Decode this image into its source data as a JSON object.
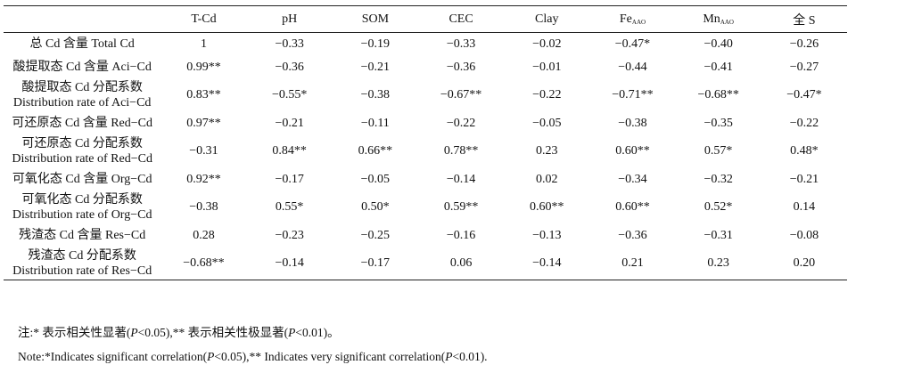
{
  "table": {
    "columns": [
      {
        "main": "",
        "sub": ""
      },
      {
        "main": "T-Cd",
        "sub": ""
      },
      {
        "main": "pH",
        "sub": ""
      },
      {
        "main": "SOM",
        "sub": ""
      },
      {
        "main": "CEC",
        "sub": ""
      },
      {
        "main": "Clay",
        "sub": ""
      },
      {
        "main": "Fe",
        "sub": "AAO"
      },
      {
        "main": "Mn",
        "sub": "AAO"
      },
      {
        "main": "全 S",
        "sub": ""
      }
    ],
    "rows": [
      {
        "label1": "总 Cd 含量 Total Cd",
        "label2": "",
        "values": [
          "1",
          "−0.33",
          "−0.19",
          "−0.33",
          "−0.02",
          "−0.47*",
          "−0.40",
          "−0.26"
        ]
      },
      {
        "label1": "酸提取态 Cd 含量 Aci−Cd",
        "label2": "",
        "values": [
          "0.99**",
          "−0.36",
          "−0.21",
          "−0.36",
          "−0.01",
          "−0.44",
          "−0.41",
          "−0.27"
        ]
      },
      {
        "label1": "酸提取态 Cd 分配系数",
        "label2": "Distribution rate of Aci−Cd",
        "values": [
          "0.83**",
          "−0.55*",
          "−0.38",
          "−0.67**",
          "−0.22",
          "−0.71**",
          "−0.68**",
          "−0.47*"
        ]
      },
      {
        "label1": "可还原态 Cd 含量 Red−Cd",
        "label2": "",
        "values": [
          "0.97**",
          "−0.21",
          "−0.11",
          "−0.22",
          "−0.05",
          "−0.38",
          "−0.35",
          "−0.22"
        ]
      },
      {
        "label1": "可还原态 Cd 分配系数",
        "label2": "Distribution rate of Red−Cd",
        "values": [
          "−0.31",
          "0.84**",
          "0.66**",
          "0.78**",
          "0.23",
          "0.60**",
          "0.57*",
          "0.48*"
        ]
      },
      {
        "label1": "可氧化态 Cd 含量 Org−Cd",
        "label2": "",
        "values": [
          "0.92**",
          "−0.17",
          "−0.05",
          "−0.14",
          "0.02",
          "−0.34",
          "−0.32",
          "−0.21"
        ]
      },
      {
        "label1": "可氧化态 Cd 分配系数",
        "label2": "Distribution rate of Org−Cd",
        "values": [
          "−0.38",
          "0.55*",
          "0.50*",
          "0.59**",
          "0.60**",
          "0.60**",
          "0.52*",
          "0.14"
        ]
      },
      {
        "label1": "残渣态 Cd 含量 Res−Cd",
        "label2": "",
        "values": [
          "0.28",
          "−0.23",
          "−0.25",
          "−0.16",
          "−0.13",
          "−0.36",
          "−0.31",
          "−0.08"
        ]
      },
      {
        "label1": "残渣态 Cd 分配系数",
        "label2": "Distribution rate of Res−Cd",
        "values": [
          "−0.68**",
          "−0.14",
          "−0.17",
          "0.06",
          "−0.14",
          "0.21",
          "0.23",
          "0.20"
        ]
      }
    ]
  },
  "notes": {
    "cn": {
      "a": "注:* 表示相关性显著(",
      "p": "P",
      "b": "<0.05),** 表示相关性极显著(",
      "c": "<0.01)。"
    },
    "en": {
      "a": "Note:*Indicates significant correlation(",
      "p": "P",
      "b": "<0.05),** Indicates very significant correlation(",
      "c": "<0.01)."
    }
  }
}
